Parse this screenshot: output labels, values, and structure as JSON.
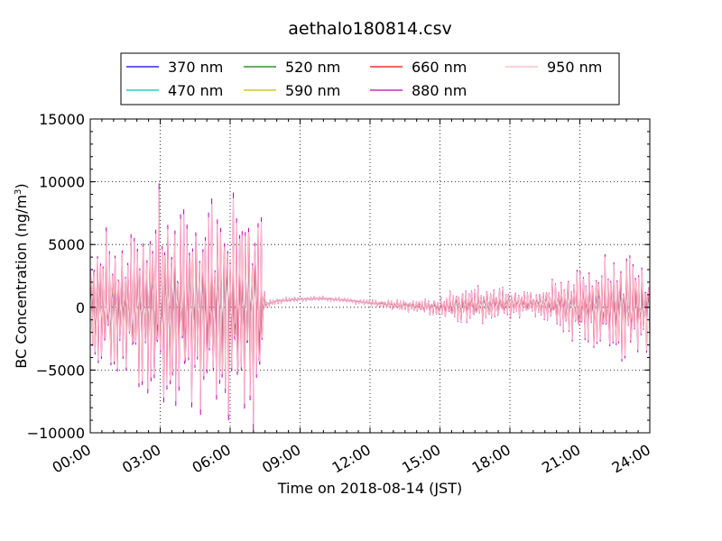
{
  "chart_data": {
    "type": "line",
    "title": "aethalo180814.csv",
    "xlabel": "Time on 2018-08-14 (JST)",
    "ylabel": "BC Concentration (ng/m",
    "ylabel_sup": "3",
    "ylabel_tail": ")",
    "xlim": [
      "00:00",
      "24:00"
    ],
    "ylim": [
      -10000,
      15000
    ],
    "x_ticks": [
      "00:00",
      "03:00",
      "06:00",
      "09:00",
      "12:00",
      "15:00",
      "18:00",
      "21:00",
      "24:00"
    ],
    "y_ticks": [
      "−10000",
      "−5000",
      "0",
      "5000",
      "10000",
      "15000"
    ],
    "grid": true,
    "legend_placement": "top-center",
    "series": [
      {
        "name": "370 nm",
        "color": "#0000ff",
        "amp": 0.6
      },
      {
        "name": "470 nm",
        "color": "#00bfbf",
        "amp": 0.65
      },
      {
        "name": "520 nm",
        "color": "#008000",
        "amp": 0.7
      },
      {
        "name": "590 nm",
        "color": "#bfbf00",
        "amp": 0.78
      },
      {
        "name": "660 nm",
        "color": "#ff0000",
        "amp": 0.85
      },
      {
        "name": "880 nm",
        "color": "#bf00bf",
        "amp": 1.0
      },
      {
        "name": "950 nm",
        "color": "#ffb6c1",
        "amp": 0.95
      }
    ],
    "envelope": {
      "x_hours": [
        0,
        0.5,
        1,
        1.5,
        2,
        2.5,
        3,
        3.5,
        4,
        4.5,
        5,
        5.5,
        6,
        6.5,
        7,
        7.3,
        7.5,
        8,
        9,
        10,
        11,
        12,
        13,
        14,
        15,
        16,
        17,
        18,
        19,
        20,
        21,
        22,
        23,
        24
      ],
      "baseline": [
        0,
        0,
        0,
        0,
        0,
        0,
        0,
        0,
        0,
        0,
        0,
        0,
        0,
        0,
        0,
        0,
        200,
        500,
        650,
        700,
        550,
        350,
        200,
        100,
        0,
        150,
        250,
        300,
        300,
        200,
        100,
        0,
        0,
        0
      ],
      "amplitude": [
        5000,
        5500,
        5500,
        5000,
        6500,
        7000,
        8500,
        8000,
        8000,
        7500,
        8000,
        8500,
        8500,
        8000,
        9000,
        8500,
        300,
        200,
        150,
        150,
        150,
        200,
        400,
        500,
        800,
        1500,
        1400,
        1200,
        900,
        2000,
        3000,
        3500,
        4500,
        3000
      ]
    }
  }
}
